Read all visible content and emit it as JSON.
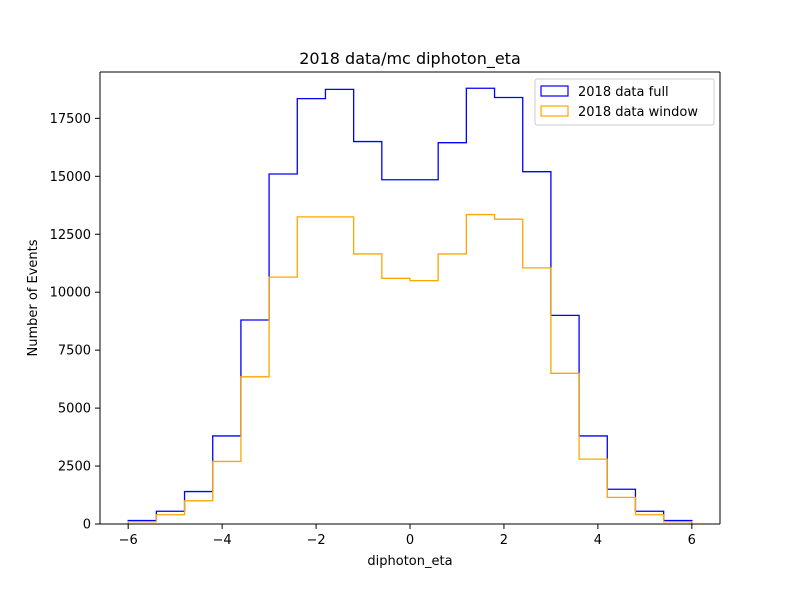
{
  "chart_data": {
    "type": "histogram",
    "title": "2018 data/mc diphoton_eta",
    "xlabel": "diphoton_eta",
    "ylabel": "Number of Events",
    "xlim": [
      -6.6,
      6.6
    ],
    "ylim": [
      0,
      19500
    ],
    "xticks": [
      -6,
      -4,
      -2,
      0,
      2,
      4,
      6
    ],
    "yticks": [
      0,
      2500,
      5000,
      7500,
      10000,
      12500,
      15000,
      17500
    ],
    "bin_edges": [
      -6.0,
      -5.4,
      -4.8,
      -4.2,
      -3.6,
      -3.0,
      -2.4,
      -1.8,
      -1.2,
      -0.6,
      0.0,
      0.6,
      1.2,
      1.8,
      2.4,
      3.0,
      3.6,
      4.2,
      4.8,
      5.4,
      6.0
    ],
    "legend_position": "top-right",
    "series": [
      {
        "name": "2018 data full",
        "color": "#0000ff",
        "values": [
          150,
          550,
          1400,
          3800,
          8800,
          15100,
          18350,
          18750,
          16500,
          14850,
          14850,
          16450,
          18800,
          18400,
          15200,
          9000,
          3800,
          1500,
          550,
          150
        ]
      },
      {
        "name": "2018 data window",
        "color": "#ffa500",
        "values": [
          100,
          400,
          1000,
          2700,
          6350,
          10650,
          13250,
          13250,
          11650,
          10600,
          10500,
          11650,
          13350,
          13150,
          11050,
          6500,
          2800,
          1150,
          400,
          100
        ]
      }
    ]
  }
}
